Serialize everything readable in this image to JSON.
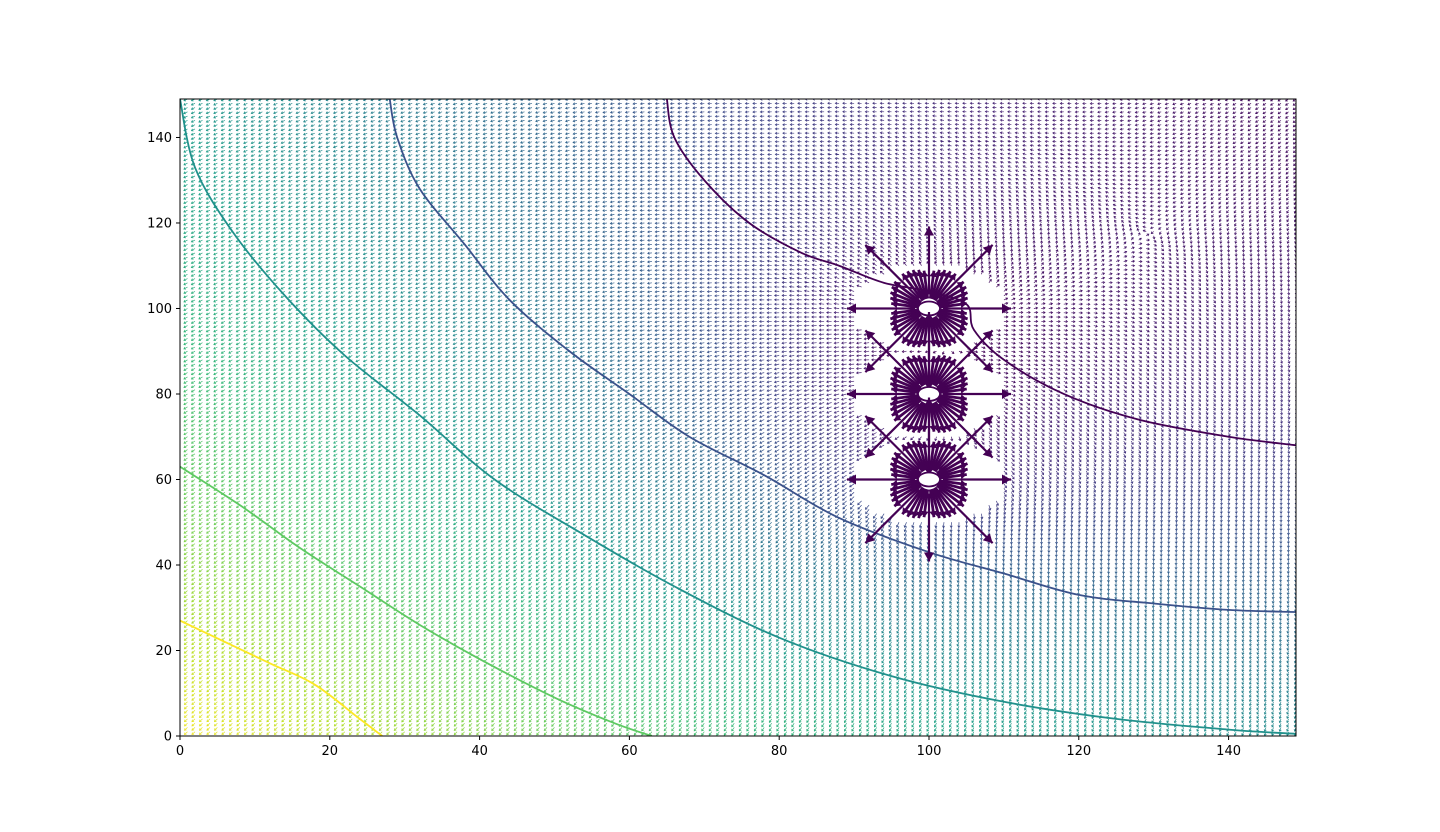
{
  "chart_data": {
    "type": "quiver",
    "title": "",
    "xlabel": "",
    "ylabel": "",
    "xlim": [
      0,
      149
    ],
    "ylim": [
      0,
      149
    ],
    "x_ticks": [
      0,
      20,
      40,
      60,
      80,
      100,
      120,
      140
    ],
    "y_ticks": [
      0,
      20,
      40,
      60,
      80,
      100,
      120,
      140
    ],
    "x_tick_labels": [
      "0",
      "20",
      "40",
      "60",
      "80",
      "100",
      "120",
      "140"
    ],
    "y_tick_labels": [
      "0",
      "20",
      "40",
      "60",
      "80",
      "100",
      "120",
      "140"
    ],
    "grid": false,
    "legend": "none",
    "colormap": "viridis",
    "field_grid_spacing": 1,
    "sources": [
      {
        "x": 100,
        "y": 100
      },
      {
        "x": 100,
        "y": 80
      },
      {
        "x": 100,
        "y": 60
      }
    ],
    "contours": [
      {
        "level": "lowest",
        "color": "#440154",
        "points": [
          [
            65,
            149
          ],
          [
            66,
            140
          ],
          [
            70,
            130
          ],
          [
            76,
            120
          ],
          [
            83,
            113
          ],
          [
            88,
            110
          ],
          [
            94,
            106
          ],
          [
            100,
            104
          ],
          [
            105,
            101
          ],
          [
            106,
            95
          ],
          [
            110,
            88
          ],
          [
            118,
            80
          ],
          [
            128,
            74
          ],
          [
            140,
            70
          ],
          [
            149,
            68
          ]
        ]
      },
      {
        "level": "low",
        "color": "#3b528b",
        "points": [
          [
            28,
            149
          ],
          [
            29,
            140
          ],
          [
            32,
            128
          ],
          [
            38,
            115
          ],
          [
            44,
            102
          ],
          [
            52,
            90
          ],
          [
            60,
            80
          ],
          [
            68,
            70
          ],
          [
            78,
            61
          ],
          [
            88,
            51
          ],
          [
            100,
            43
          ],
          [
            110,
            38
          ],
          [
            120,
            33
          ],
          [
            130,
            31
          ],
          [
            140,
            29.5
          ],
          [
            149,
            29
          ]
        ]
      },
      {
        "level": "mid",
        "color": "#21918c",
        "points": [
          [
            0,
            149
          ],
          [
            2,
            133
          ],
          [
            7,
            118
          ],
          [
            14,
            103
          ],
          [
            22,
            89
          ],
          [
            32,
            75
          ],
          [
            42,
            60
          ],
          [
            54,
            47
          ],
          [
            66,
            35
          ],
          [
            80,
            23
          ],
          [
            95,
            14
          ],
          [
            110,
            8
          ],
          [
            125,
            4
          ],
          [
            140,
            1.5
          ],
          [
            149,
            0.5
          ]
        ]
      },
      {
        "level": "high",
        "color": "#5ec962",
        "points": [
          [
            0,
            63
          ],
          [
            8,
            54
          ],
          [
            16,
            44
          ],
          [
            24,
            35
          ],
          [
            32,
            26
          ],
          [
            40,
            18
          ],
          [
            50,
            9
          ],
          [
            58,
            3
          ],
          [
            63,
            0
          ]
        ]
      },
      {
        "level": "highest",
        "color": "#fde725",
        "points": [
          [
            0,
            27
          ],
          [
            6,
            22
          ],
          [
            12,
            17
          ],
          [
            18,
            12
          ],
          [
            24,
            4
          ],
          [
            27,
            0
          ]
        ]
      }
    ]
  }
}
